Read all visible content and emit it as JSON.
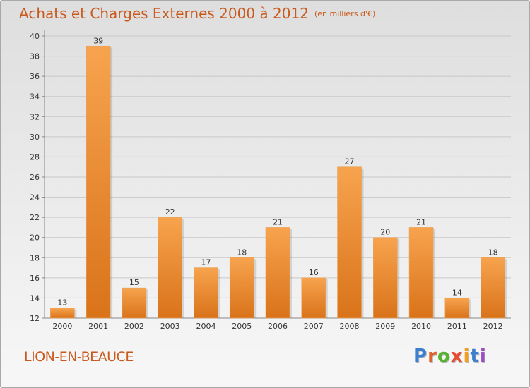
{
  "header": {
    "title": "Achats et Charges Externes 2000 à 2012",
    "unit": "(en milliers d'€)"
  },
  "footer": {
    "place": "LION-EN-BEAUCE",
    "logo_letters": [
      "P",
      "r",
      "o",
      "x",
      "i",
      "t",
      "i"
    ],
    "logo_colors": [
      "#3a7fd0",
      "#e0622a",
      "#57b22f",
      "#e84c30",
      "#f0a020",
      "#3a7fd0",
      "#9b4fc4"
    ]
  },
  "colors": {
    "title": "#c95a1e",
    "bar_light": "#f7a34e",
    "bar_dark": "#d9731a"
  },
  "chart_data": {
    "type": "bar",
    "categories": [
      "2000",
      "2001",
      "2002",
      "2003",
      "2004",
      "2005",
      "2006",
      "2007",
      "2008",
      "2009",
      "2010",
      "2011",
      "2012"
    ],
    "values": [
      13,
      39,
      15,
      22,
      17,
      18,
      21,
      16,
      27,
      20,
      21,
      14,
      18
    ],
    "ylim": [
      12,
      40
    ],
    "yticks": [
      12,
      14,
      16,
      18,
      20,
      22,
      24,
      26,
      28,
      30,
      32,
      34,
      36,
      38,
      40
    ],
    "grid": true
  }
}
